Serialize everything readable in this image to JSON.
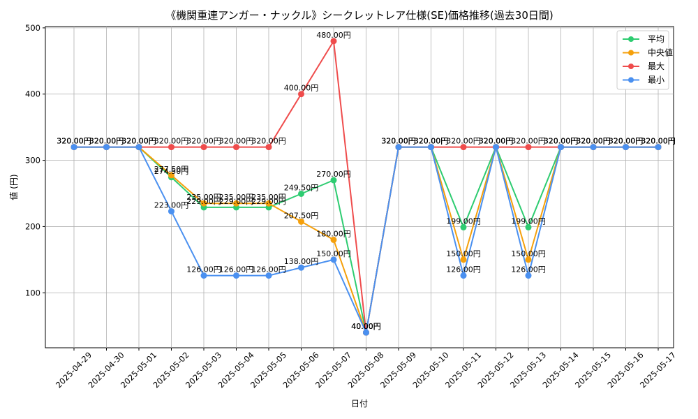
{
  "chart_data": {
    "type": "line",
    "title": "《機関重連アンガー・ナックル》シークレットレア仕様(SE)価格推移(過去30日間)",
    "xlabel": "日付",
    "ylabel": "値 (円)",
    "ylim": [
      17,
      502
    ],
    "yticks": [
      100,
      200,
      300,
      400,
      500
    ],
    "grid": true,
    "legend_position": "top-right",
    "label_suffix": "円",
    "categories": [
      "2025-04-29",
      "2025-04-30",
      "2025-05-01",
      "2025-05-02",
      "2025-05-03",
      "2025-05-04",
      "2025-05-05",
      "2025-05-06",
      "2025-05-07",
      "2025-05-08",
      "2025-05-09",
      "2025-05-10",
      "2025-05-11",
      "2025-05-12",
      "2025-05-13",
      "2025-05-14",
      "2025-05-15",
      "2025-05-16",
      "2025-05-17"
    ],
    "series": [
      {
        "name": "平均",
        "color": "#2ecc71",
        "values": [
          320,
          320,
          320,
          274.5,
          229,
          229,
          229,
          249.5,
          270,
          40,
          320,
          320,
          199,
          320,
          199,
          320,
          320,
          320,
          320
        ]
      },
      {
        "name": "中央値",
        "color": "#f5a00b",
        "values": [
          320,
          320,
          320,
          277.5,
          235,
          235,
          235,
          207.5,
          180,
          40,
          320,
          320,
          150,
          320,
          150,
          320,
          320,
          320,
          320
        ]
      },
      {
        "name": "最大",
        "color": "#ef4c4c",
        "values": [
          320,
          320,
          320,
          320,
          320,
          320,
          320,
          400,
          480,
          40,
          320,
          320,
          320,
          320,
          320,
          320,
          320,
          320,
          320
        ]
      },
      {
        "name": "最小",
        "color": "#4a90f0",
        "values": [
          320,
          320,
          320,
          223,
          126,
          126,
          126,
          138,
          150,
          40,
          320,
          320,
          126,
          320,
          126,
          320,
          320,
          320,
          320
        ]
      }
    ]
  }
}
